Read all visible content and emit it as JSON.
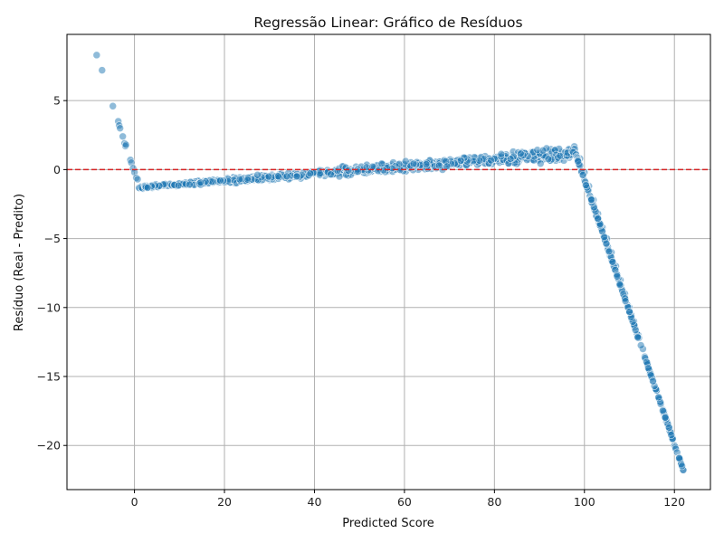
{
  "chart_data": {
    "type": "scatter",
    "title": "Regressão Linear: Gráfico de Resíduos",
    "xlabel": "Predicted Score",
    "ylabel": "Resíduo (Real - Predito)",
    "xlim": [
      -15,
      128
    ],
    "ylim": [
      -23.2,
      9.8
    ],
    "xticks": [
      0,
      20,
      40,
      60,
      80,
      100,
      120
    ],
    "yticks": [
      5,
      0,
      -5,
      -10,
      -15,
      -20
    ],
    "ytick_labels": [
      "5",
      "0",
      "−5",
      "−10",
      "−15",
      "−20"
    ],
    "grid": true,
    "reference_line": {
      "y": 0,
      "style": "dashed",
      "color": "#d62728"
    },
    "colors": {
      "point": "#1f77b4",
      "point_edge": "#ffffff",
      "reference": "#d62728",
      "grid": "#b0b0b0"
    },
    "point_opacity": 0.5,
    "segments": [
      {
        "name": "",
        "x_start": -8.5,
        "y_start": 8.3,
        "x_end": 1.0,
        "y_end": -1.3
      },
      {
        "name": "",
        "x_start": 1.0,
        "y_start": -1.3,
        "x_end": 98.0,
        "y_end": 1.2
      },
      {
        "name": "",
        "x_start": 98.0,
        "y_start": 1.2,
        "x_end": 122.0,
        "y_end": -21.8
      }
    ],
    "points": [
      [
        -8.4,
        8.3
      ],
      [
        -7.2,
        7.2
      ],
      [
        -4.8,
        4.6
      ],
      [
        -3.6,
        3.5
      ],
      [
        -3.4,
        3.2
      ],
      [
        -3.2,
        3.0
      ],
      [
        -2.6,
        2.4
      ],
      [
        -2.2,
        1.9
      ],
      [
        -2.0,
        1.7
      ],
      [
        -1.9,
        1.8
      ],
      [
        -0.9,
        0.7
      ],
      [
        -0.7,
        0.5
      ],
      [
        -0.3,
        0.1
      ],
      [
        0.0,
        -0.2
      ],
      [
        0.4,
        -0.6
      ],
      [
        0.7,
        -0.7
      ],
      [
        1.0,
        -1.3
      ],
      [
        2,
        -1.25
      ],
      [
        4,
        -1.2
      ],
      [
        6,
        -1.15
      ],
      [
        8,
        -1.1
      ],
      [
        10,
        -1.05
      ],
      [
        12,
        -1.0
      ],
      [
        14,
        -0.95
      ],
      [
        16,
        -0.9
      ],
      [
        18,
        -0.85
      ],
      [
        20,
        -0.8
      ],
      [
        22,
        -0.75
      ],
      [
        24,
        -0.7
      ],
      [
        26,
        -0.62
      ],
      [
        28,
        -0.55
      ],
      [
        30,
        -0.5
      ],
      [
        32,
        -0.45
      ],
      [
        34,
        -0.4
      ],
      [
        36,
        -0.35
      ],
      [
        38,
        -0.3
      ],
      [
        40,
        -0.25
      ],
      [
        42,
        -0.2
      ],
      [
        44,
        -0.15
      ],
      [
        46,
        -0.1
      ],
      [
        48,
        -0.05
      ],
      [
        50,
        0.0
      ],
      [
        52,
        0.05
      ],
      [
        54,
        0.1
      ],
      [
        56,
        0.15
      ],
      [
        58,
        0.2
      ],
      [
        60,
        0.25
      ],
      [
        62,
        0.3
      ],
      [
        64,
        0.35
      ],
      [
        66,
        0.4
      ],
      [
        68,
        0.45
      ],
      [
        70,
        0.5
      ],
      [
        72,
        0.55
      ],
      [
        74,
        0.6
      ],
      [
        76,
        0.65
      ],
      [
        78,
        0.7
      ],
      [
        80,
        0.75
      ],
      [
        82,
        0.8
      ],
      [
        84,
        0.85
      ],
      [
        86,
        0.9
      ],
      [
        88,
        0.95
      ],
      [
        90,
        1.0
      ],
      [
        92,
        1.05
      ],
      [
        94,
        1.1
      ],
      [
        96,
        1.15
      ],
      [
        98,
        1.2
      ],
      [
        99,
        0.8
      ],
      [
        100,
        -0.2
      ],
      [
        101,
        -1.2
      ],
      [
        102,
        -2.2
      ],
      [
        103,
        -3.2
      ],
      [
        104,
        -4.2
      ],
      [
        105,
        -5.0
      ],
      [
        106,
        -6.0
      ],
      [
        107,
        -7.0
      ],
      [
        108,
        -8.0
      ],
      [
        109,
        -9.0
      ],
      [
        110,
        -10.0
      ],
      [
        111,
        -11.0
      ],
      [
        112,
        -12.0
      ],
      [
        113,
        -13.0
      ],
      [
        114,
        -14.0
      ],
      [
        115,
        -15.0
      ],
      [
        116,
        -16.0
      ],
      [
        117,
        -17.0
      ],
      [
        118,
        -18.0
      ],
      [
        119,
        -19.0
      ],
      [
        120,
        -20.0
      ],
      [
        121,
        -21.0
      ],
      [
        122,
        -21.8
      ]
    ]
  }
}
